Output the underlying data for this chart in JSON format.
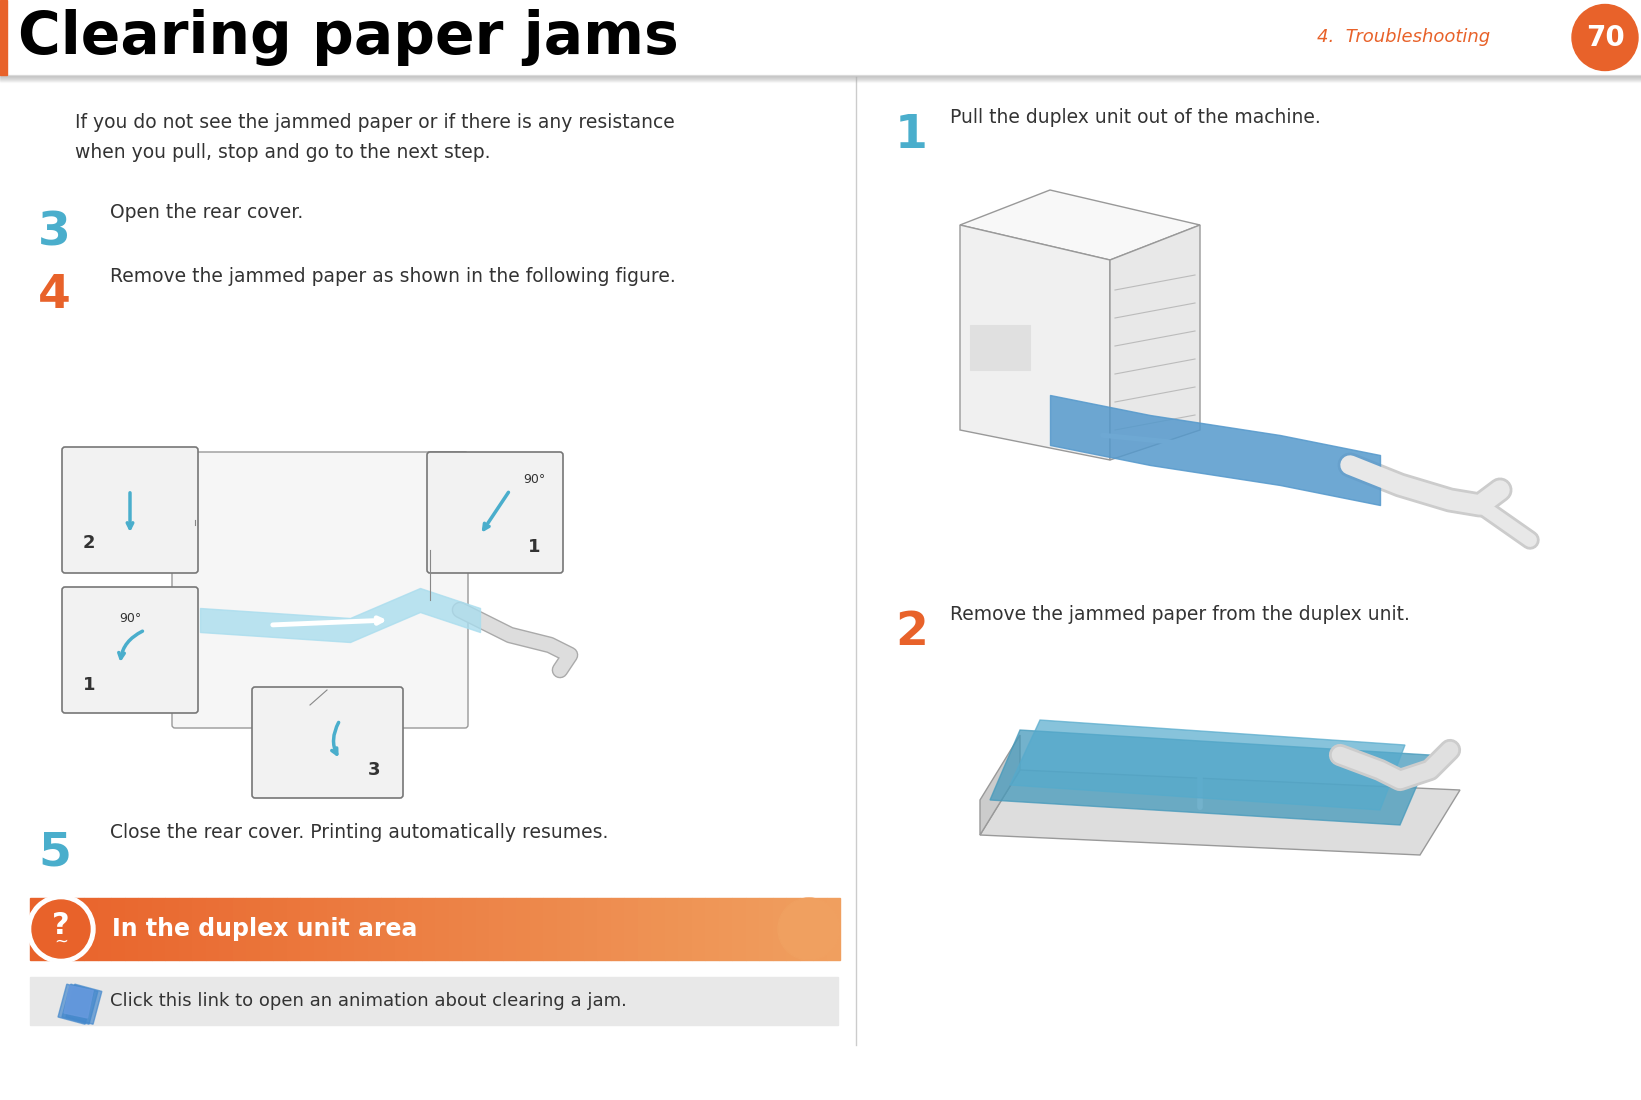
{
  "title": "Clearing paper jams",
  "chapter_label": "4.  Troubleshooting",
  "page_number": "70",
  "header_orange": "#E8622A",
  "step_color_orange": "#E8622A",
  "step_color_blue": "#4AAECC",
  "bg_color": "#ffffff",
  "body_text_color": "#333333",
  "intro_text_line1": "If you do not see the jammed paper or if there is any resistance",
  "intro_text_line2": "when you pull, stop and go to the next step.",
  "step3_label": "3",
  "step3_text": "Open the rear cover.",
  "step4_label": "4",
  "step4_text": "Remove the jammed paper as shown in the following figure.",
  "step5_label": "5",
  "step5_text": "Close the rear cover. Printing automatically resumes.",
  "section_title": "In the duplex unit area",
  "link_text": "Click this link to open an animation about clearing a jam.",
  "right_step1_label": "1",
  "right_step1_text": "Pull the duplex unit out of the machine.",
  "right_step2_label": "2",
  "right_step2_text": "Remove the jammed paper from the duplex unit.",
  "orange_gradient_start": "#E8622A",
  "orange_gradient_end": "#F0A060",
  "divider_color": "#bbbbbb",
  "header_shadow_color": "#cccccc",
  "link_bar_color": "#e8e8e8"
}
